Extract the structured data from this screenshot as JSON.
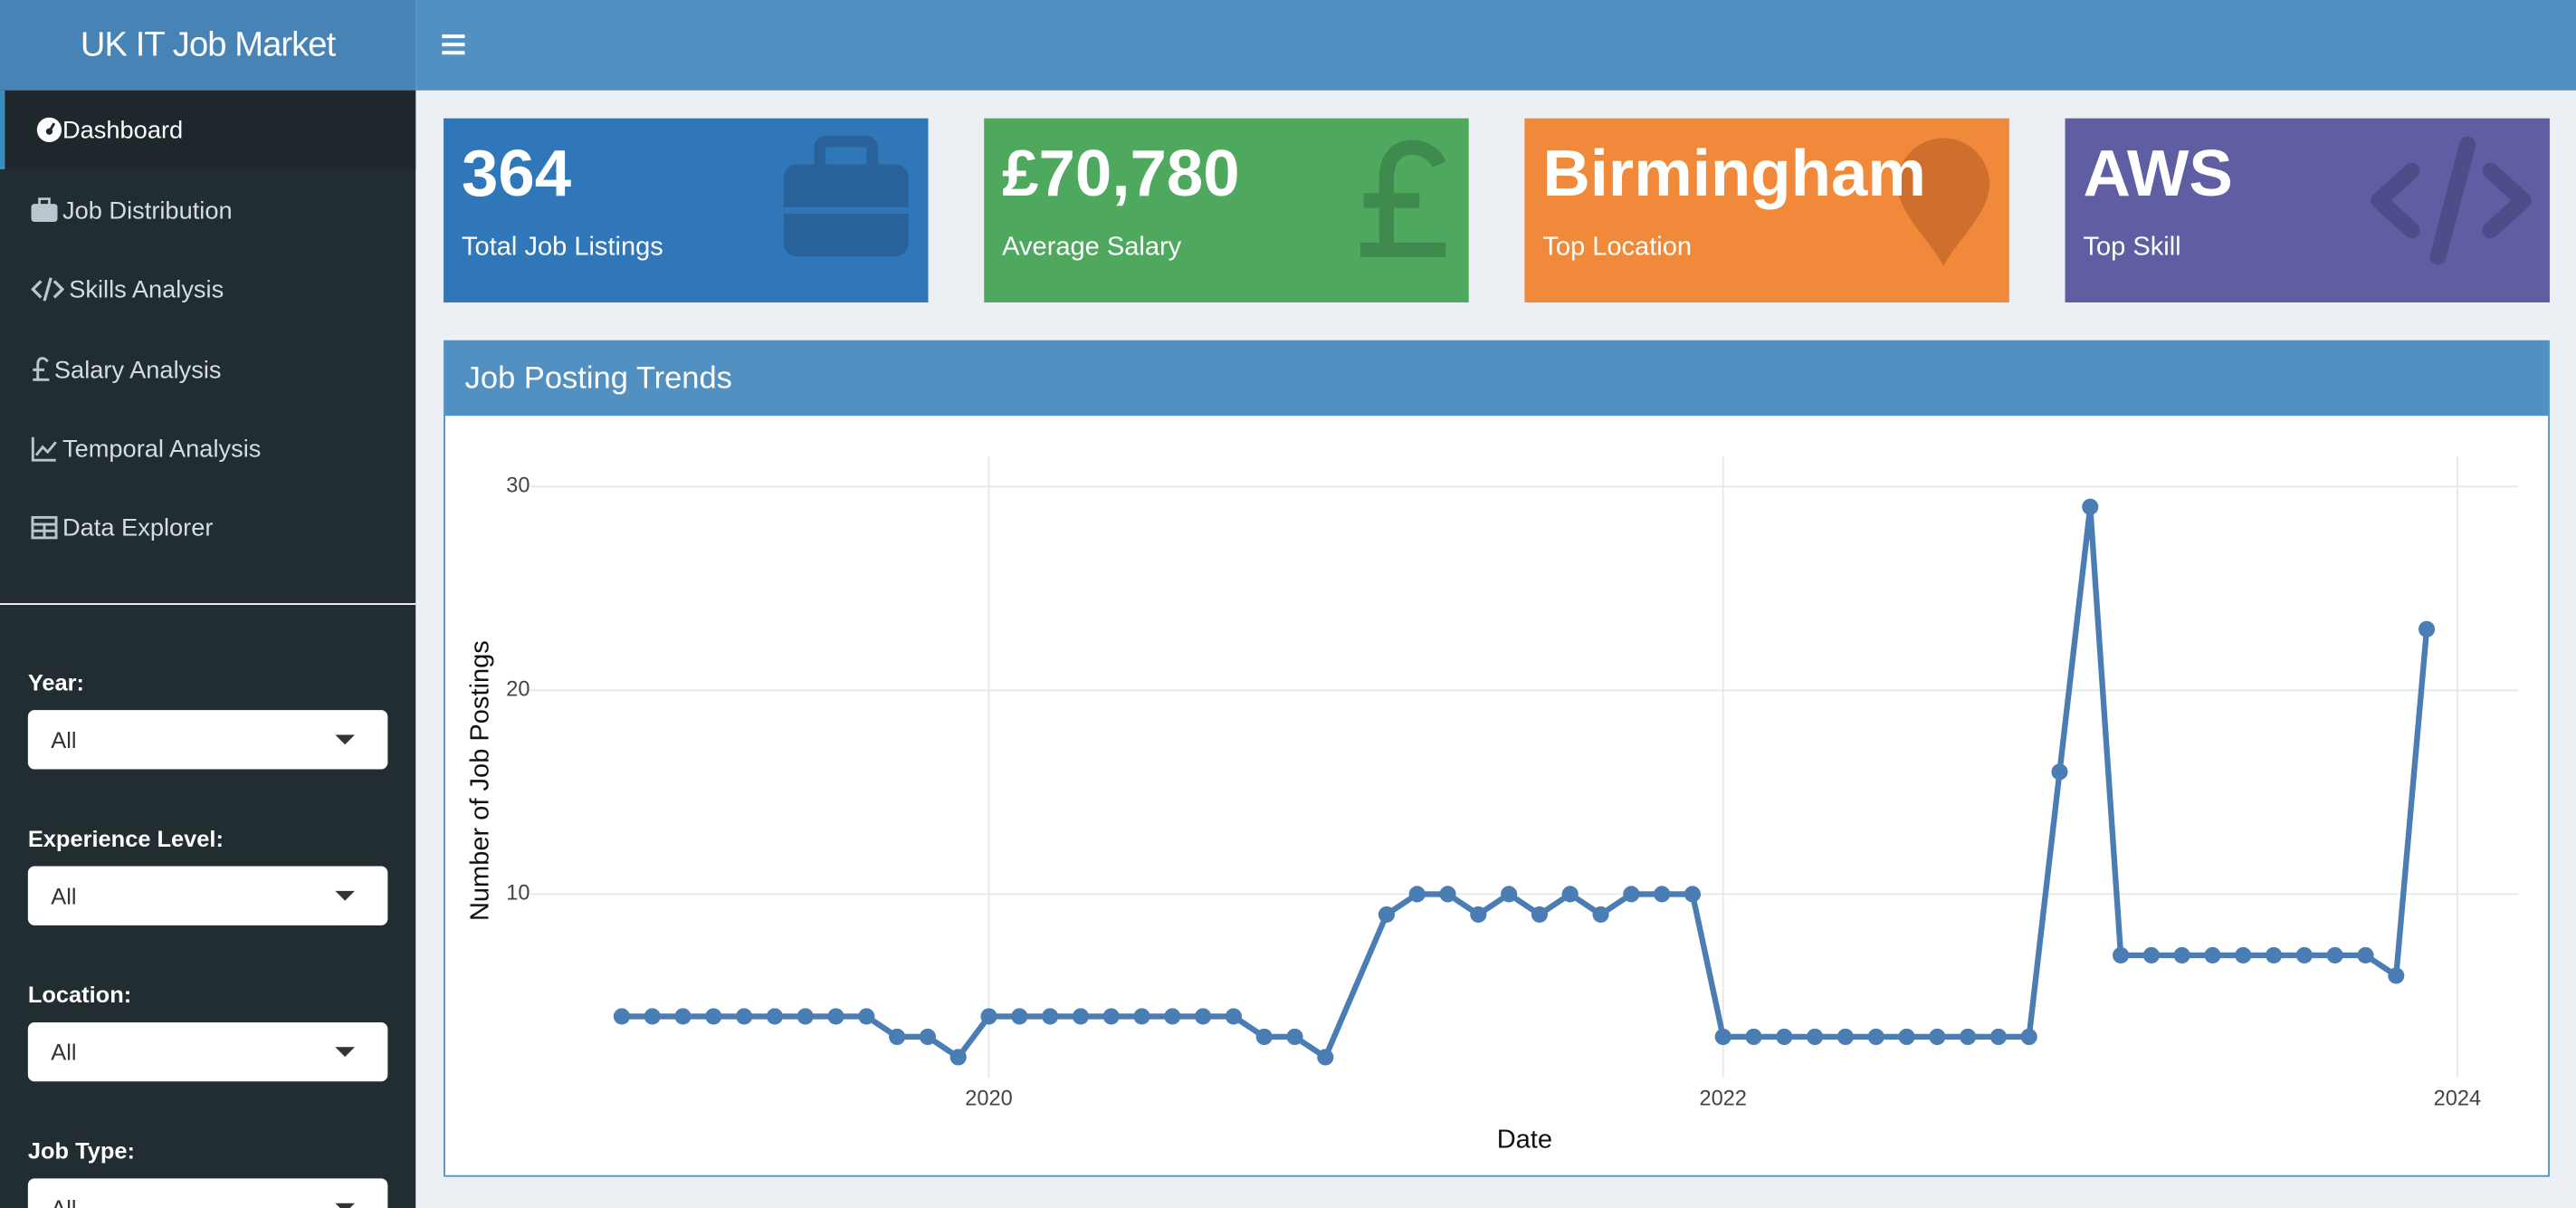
{
  "header": {
    "title": "UK IT Job Market"
  },
  "menu": [
    "Dashboard",
    "Job Distribution",
    "Skills Analysis",
    "Salary Analysis",
    "Temporal Analysis",
    "Data Explorer"
  ],
  "filters": [
    {
      "label": "Year:",
      "value": "All"
    },
    {
      "label": "Experience Level:",
      "value": "All"
    },
    {
      "label": "Location:",
      "value": "All"
    },
    {
      "label": "Job Type:",
      "value": "All"
    }
  ],
  "value_boxes": [
    {
      "value": "364",
      "label": "Total Job Listings"
    },
    {
      "value": "£70,780",
      "label": "Average Salary"
    },
    {
      "value": "Birmingham",
      "label": "Top Location"
    },
    {
      "value": "AWS",
      "label": "Top Skill"
    }
  ],
  "card": {
    "title": "Job Posting Trends"
  },
  "chart_data": {
    "type": "line",
    "x_label": "Date",
    "y_label": "Number of Job Postings",
    "color": "#4a7db3",
    "x": [
      "2019-01",
      "2019-02",
      "2019-03",
      "2019-04",
      "2019-05",
      "2019-06",
      "2019-07",
      "2019-08",
      "2019-09",
      "2019-10",
      "2019-11",
      "2019-12",
      "2020-01",
      "2020-02",
      "2020-03",
      "2020-04",
      "2020-05",
      "2020-06",
      "2020-07",
      "2020-08",
      "2020-09",
      "2020-10",
      "2020-11",
      "2020-12",
      "2021-02",
      "2021-03",
      "2021-04",
      "2021-05",
      "2021-06",
      "2021-07",
      "2021-08",
      "2021-09",
      "2021-10",
      "2021-11",
      "2021-12",
      "2022-01",
      "2022-02",
      "2022-03",
      "2022-04",
      "2022-05",
      "2022-06",
      "2022-07",
      "2022-08",
      "2022-09",
      "2022-10",
      "2022-11",
      "2022-12",
      "2023-01",
      "2023-02",
      "2023-03",
      "2023-04",
      "2023-05",
      "2023-06",
      "2023-07",
      "2023-08",
      "2023-09",
      "2023-10",
      "2023-11",
      "2023-12"
    ],
    "values": [
      4,
      4,
      4,
      4,
      4,
      4,
      4,
      4,
      4,
      3,
      3,
      2,
      4,
      4,
      4,
      4,
      4,
      4,
      4,
      4,
      4,
      3,
      3,
      2,
      9,
      10,
      10,
      9,
      10,
      9,
      10,
      9,
      10,
      10,
      10,
      3,
      3,
      3,
      3,
      3,
      3,
      3,
      3,
      3,
      3,
      3,
      16,
      29,
      7,
      7,
      7,
      7,
      7,
      7,
      7,
      7,
      7,
      6,
      23
    ],
    "xlim": [
      "2018-10",
      "2024-03"
    ],
    "xticks": [
      2020,
      2022,
      2024
    ],
    "ylim": [
      1,
      31
    ],
    "yticks": [
      10,
      20,
      30
    ],
    "grid": true
  }
}
